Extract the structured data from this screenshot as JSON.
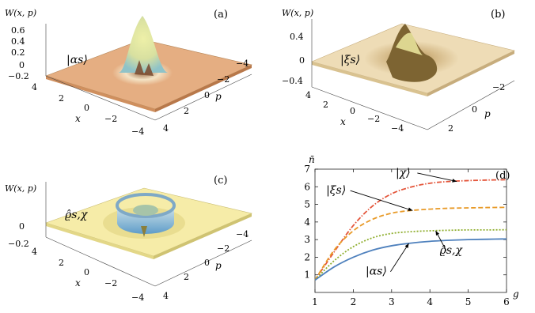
{
  "panels": [
    {
      "label": "(a)",
      "zlabel": "W(x, p)",
      "zticks": [
        "0.6",
        "0.4",
        "0.2",
        "0",
        "−0.2"
      ],
      "xlabel": "x",
      "plabel": "p",
      "xticks": [
        "4",
        "2",
        "0",
        "−2",
        "−4"
      ],
      "pticks": [
        "−4",
        "−2",
        "0",
        "2",
        "4"
      ],
      "state": "|αs⟩",
      "colors": {
        "plane": "#e5ae82",
        "peak": "#e8e79a",
        "ring": "#f2dec0",
        "shade": "#a9753d"
      }
    },
    {
      "label": "(b)",
      "zlabel": "W(x, p)",
      "zticks": [
        "0.4",
        "0",
        "−0.4"
      ],
      "xlabel": "x",
      "plabel": "p",
      "xticks": [
        "4",
        "2",
        "0",
        "−2",
        "−4"
      ],
      "pticks": [
        "−2",
        "0",
        "2"
      ],
      "state": "|ξs⟩",
      "colors": {
        "plane": "#eedcb6",
        "peak": "#e9e49a",
        "ring": "#b48e57",
        "shade": "#8b6a3e"
      }
    },
    {
      "label": "(c)",
      "zlabel": "W(x, p)",
      "zticks": [
        "0",
        "−0.2"
      ],
      "xlabel": "x",
      "plabel": "p",
      "xticks": [
        "4",
        "2",
        "0",
        "−2",
        "−4"
      ],
      "pticks": [
        "−4",
        "−2",
        "0",
        "2",
        "4"
      ],
      "state": "ϱ̂s,χ",
      "colors": {
        "plane": "#f6eca8",
        "ring": "#7fb2d8",
        "ring_top": "#c8dfe8",
        "shade": "#8a7f3c"
      }
    }
  ],
  "chart_data": {
    "type": "line",
    "label": "(d)",
    "ylabel": "n̄",
    "xlabel": "g",
    "xlim": [
      1,
      6
    ],
    "ylim": [
      0,
      7
    ],
    "xticks": [
      "1",
      "2",
      "3",
      "4",
      "5",
      "6"
    ],
    "yticks": [
      "1",
      "2",
      "3",
      "4",
      "5",
      "6",
      "7"
    ],
    "series": [
      {
        "name": "|χ⟩",
        "color": "#e4553a",
        "dash": "6,2,1.5,2",
        "x": [
          1,
          1.5,
          2,
          2.5,
          3,
          3.5,
          4,
          4.5,
          5,
          5.5,
          6
        ],
        "y": [
          0.7,
          2.3,
          3.8,
          4.9,
          5.6,
          5.98,
          6.2,
          6.3,
          6.35,
          6.38,
          6.4
        ]
      },
      {
        "name": "|ξs⟩",
        "color": "#e89a28",
        "dash": "6,3",
        "x": [
          1,
          1.5,
          2,
          2.5,
          3,
          3.5,
          4,
          4.5,
          5,
          5.5,
          6
        ],
        "y": [
          0.7,
          2.4,
          3.5,
          4.15,
          4.5,
          4.65,
          4.73,
          4.78,
          4.8,
          4.82,
          4.83
        ]
      },
      {
        "name": "ϱ̂s,χ",
        "color": "#8fae2e",
        "dash": "2,2",
        "x": [
          1,
          1.5,
          2,
          2.5,
          3,
          3.5,
          4,
          4.5,
          5,
          5.5,
          6
        ],
        "y": [
          0.7,
          1.8,
          2.6,
          3.1,
          3.35,
          3.45,
          3.5,
          3.53,
          3.55,
          3.55,
          3.56
        ]
      },
      {
        "name": "|αs⟩",
        "color": "#4f81bd",
        "dash": "",
        "x": [
          1,
          1.5,
          2,
          2.5,
          3,
          3.5,
          4,
          4.5,
          5,
          5.5,
          6
        ],
        "y": [
          0.7,
          1.45,
          2.0,
          2.4,
          2.65,
          2.8,
          2.9,
          2.96,
          3.0,
          3.02,
          3.04
        ]
      }
    ],
    "annotations": [
      {
        "text": "|χ⟩",
        "x": 3.3,
        "y": 6.6,
        "target_x": 4.7,
        "target_y": 6.3
      },
      {
        "text": "|ξs⟩",
        "x": 1.55,
        "y": 5.6,
        "target_x": 3.55,
        "target_y": 4.65
      },
      {
        "text": "ϱ̂s,χ",
        "x": 4.55,
        "y": 2.2,
        "target_x": 4.15,
        "target_y": 3.5
      },
      {
        "text": "|αs⟩",
        "x": 2.6,
        "y": 1.0,
        "target_x": 3.45,
        "target_y": 2.78
      }
    ]
  }
}
